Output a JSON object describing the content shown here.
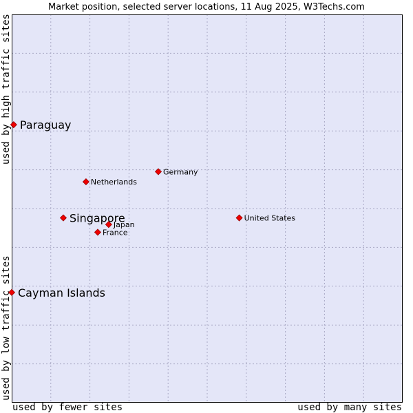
{
  "chart_data": {
    "type": "scatter",
    "title": "Market position, selected server locations, 11 Aug 2025, W3Techs.com",
    "xlabel_low": "used by fewer sites",
    "xlabel_high": "used by many sites",
    "ylabel_low": "used by low traffic sites",
    "ylabel_high": "used by high traffic sites",
    "xlim": [
      0,
      100
    ],
    "ylim": [
      0,
      100
    ],
    "grid": true,
    "points": [
      {
        "label": "Paraguay",
        "x": 0.5,
        "y": 71.6,
        "emphasis": true
      },
      {
        "label": "Germany",
        "x": 37.5,
        "y": 59.5,
        "emphasis": false
      },
      {
        "label": "Netherlands",
        "x": 19.0,
        "y": 56.9,
        "emphasis": false
      },
      {
        "label": "Singapore",
        "x": 13.2,
        "y": 47.6,
        "emphasis": true
      },
      {
        "label": "Japan",
        "x": 24.8,
        "y": 45.9,
        "emphasis": false
      },
      {
        "label": "France",
        "x": 22.0,
        "y": 43.9,
        "emphasis": false
      },
      {
        "label": "United States",
        "x": 58.2,
        "y": 47.6,
        "emphasis": false
      },
      {
        "label": "Cayman Islands",
        "x": 0.0,
        "y": 28.4,
        "emphasis": true
      }
    ]
  },
  "colors": {
    "plot_background": "#e4e6f8",
    "grid": "#a8a8c4",
    "border": "#000000",
    "marker": "#ee0000",
    "marker_edge": "#990000"
  }
}
